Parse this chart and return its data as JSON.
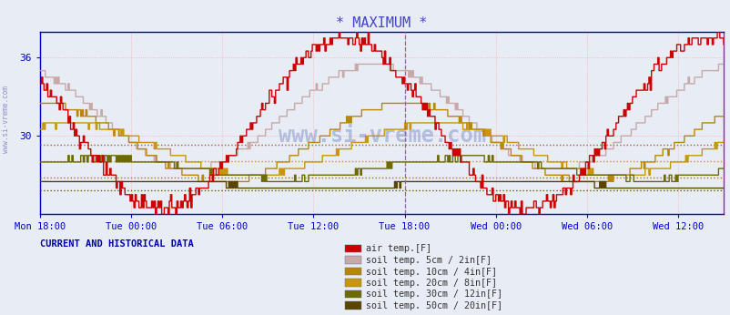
{
  "title": "* MAXIMUM *",
  "title_color": "#4444cc",
  "background_color": "#e8ecf4",
  "plot_bg_color": "#e8ecf4",
  "frame_color": "#0000bb",
  "xticklabels": [
    "Mon 18:00",
    "Tue 00:00",
    "Tue 06:00",
    "Tue 12:00",
    "Tue 18:00",
    "Wed 00:00",
    "Wed 06:00",
    "Wed 12:00"
  ],
  "xtick_hours": [
    0,
    6,
    12,
    18,
    24,
    30,
    36,
    42
  ],
  "ylim": [
    24.0,
    38.0
  ],
  "xlim_hours": [
    0,
    45
  ],
  "ytick_positions": [
    30,
    36
  ],
  "ytick_labels": [
    "30",
    "36"
  ],
  "vline_hour": 24,
  "vline_color": "#cc44cc",
  "grid_color": "#ffaaaa",
  "hlines": [
    {
      "y": 29.3,
      "color": "#996633",
      "lw": 1.0
    },
    {
      "y": 28.1,
      "color": "#cc9900",
      "lw": 1.0
    },
    {
      "y": 26.8,
      "color": "#aa7700",
      "lw": 1.0
    },
    {
      "y": 25.8,
      "color": "#666600",
      "lw": 1.0
    }
  ],
  "watermark": "www.si-vreme.com",
  "watermark_color": "#3355aa",
  "watermark_alpha": 0.3,
  "sidebar_text": "www.si-vreme.com",
  "legend_entries": [
    {
      "label": "air temp.[F]",
      "color": "#cc0000"
    },
    {
      "label": "soil temp. 5cm / 2in[F]",
      "color": "#c8a8a8"
    },
    {
      "label": "soil temp. 10cm / 4in[F]",
      "color": "#b8860b"
    },
    {
      "label": "soil temp. 20cm / 8in[F]",
      "color": "#c8960a"
    },
    {
      "label": "soil temp. 30cm / 12in[F]",
      "color": "#6b6b00"
    },
    {
      "label": "soil temp. 50cm / 20in[F]",
      "color": "#5a4500"
    }
  ],
  "current_label": "CURRENT AND HISTORICAL DATA"
}
